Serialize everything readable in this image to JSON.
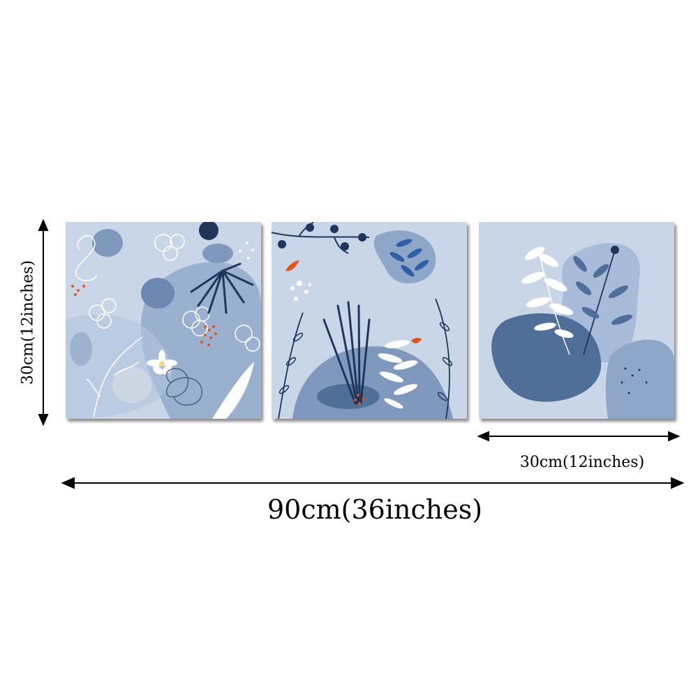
{
  "dimensions": {
    "panel_height_label": "30cm(12inches)",
    "panel_width_label": "30cm(12inches)",
    "total_width_label": "90cm(36inches)"
  },
  "artwork": {
    "panel_count": 3,
    "colors": {
      "background": "#c9d6e8",
      "mid_blue": "#7f98bd",
      "deep_blue": "#4f6f99",
      "navy": "#1f3559",
      "orange": "#e0561f",
      "white": "#ffffff",
      "shadow": "#4a4a4a"
    }
  }
}
